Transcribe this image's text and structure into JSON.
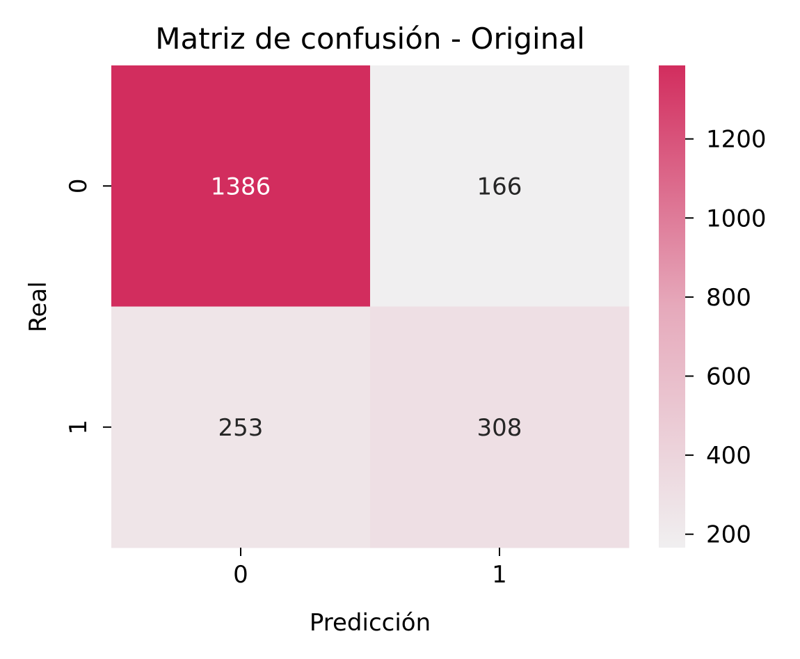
{
  "chart_data": {
    "type": "heatmap",
    "title": "Matriz de confusión - Original",
    "xlabel": "Predicción",
    "ylabel": "Real",
    "x_categories": [
      "0",
      "1"
    ],
    "y_categories": [
      "0",
      "1"
    ],
    "values": [
      [
        1386,
        166
      ],
      [
        253,
        308
      ]
    ],
    "colorbar": {
      "ticks": [
        "200",
        "400",
        "600",
        "800",
        "1000",
        "1200"
      ],
      "tick_values": [
        200,
        400,
        600,
        800,
        1000,
        1200
      ],
      "min": 166,
      "max": 1386,
      "color_low": "#f0eff0",
      "color_high": "#d22d5e"
    },
    "annotation_color_dark": "#262626",
    "annotation_color_light": "#ffffff"
  }
}
